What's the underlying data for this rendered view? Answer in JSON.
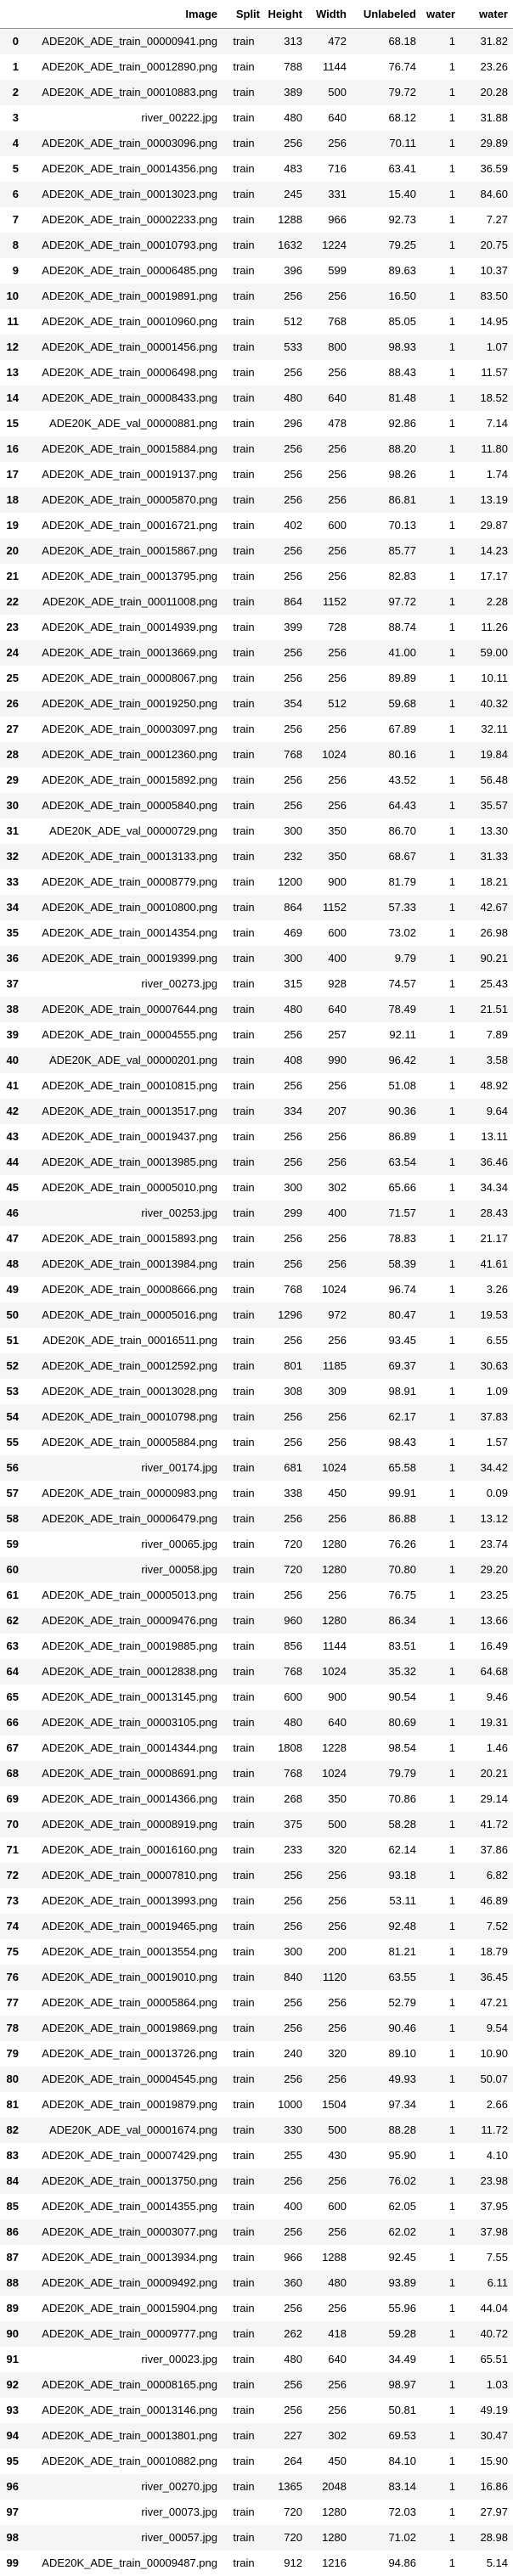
{
  "columns": [
    "",
    "Image",
    "Split",
    "Height",
    "Width",
    "Unlabeled",
    "water",
    "water"
  ],
  "rows": [
    [
      "0",
      "ADE20K_ADE_train_00000941.png",
      "train",
      "313",
      "472",
      "68.18",
      "1",
      "31.82"
    ],
    [
      "1",
      "ADE20K_ADE_train_00012890.png",
      "train",
      "788",
      "1144",
      "76.74",
      "1",
      "23.26"
    ],
    [
      "2",
      "ADE20K_ADE_train_00010883.png",
      "train",
      "389",
      "500",
      "79.72",
      "1",
      "20.28"
    ],
    [
      "3",
      "river_00222.jpg",
      "train",
      "480",
      "640",
      "68.12",
      "1",
      "31.88"
    ],
    [
      "4",
      "ADE20K_ADE_train_00003096.png",
      "train",
      "256",
      "256",
      "70.11",
      "1",
      "29.89"
    ],
    [
      "5",
      "ADE20K_ADE_train_00014356.png",
      "train",
      "483",
      "716",
      "63.41",
      "1",
      "36.59"
    ],
    [
      "6",
      "ADE20K_ADE_train_00013023.png",
      "train",
      "245",
      "331",
      "15.40",
      "1",
      "84.60"
    ],
    [
      "7",
      "ADE20K_ADE_train_00002233.png",
      "train",
      "1288",
      "966",
      "92.73",
      "1",
      "7.27"
    ],
    [
      "8",
      "ADE20K_ADE_train_00010793.png",
      "train",
      "1632",
      "1224",
      "79.25",
      "1",
      "20.75"
    ],
    [
      "9",
      "ADE20K_ADE_train_00006485.png",
      "train",
      "396",
      "599",
      "89.63",
      "1",
      "10.37"
    ],
    [
      "10",
      "ADE20K_ADE_train_00019891.png",
      "train",
      "256",
      "256",
      "16.50",
      "1",
      "83.50"
    ],
    [
      "11",
      "ADE20K_ADE_train_00010960.png",
      "train",
      "512",
      "768",
      "85.05",
      "1",
      "14.95"
    ],
    [
      "12",
      "ADE20K_ADE_train_00001456.png",
      "train",
      "533",
      "800",
      "98.93",
      "1",
      "1.07"
    ],
    [
      "13",
      "ADE20K_ADE_train_00006498.png",
      "train",
      "256",
      "256",
      "88.43",
      "1",
      "11.57"
    ],
    [
      "14",
      "ADE20K_ADE_train_00008433.png",
      "train",
      "480",
      "640",
      "81.48",
      "1",
      "18.52"
    ],
    [
      "15",
      "ADE20K_ADE_val_00000881.png",
      "train",
      "296",
      "478",
      "92.86",
      "1",
      "7.14"
    ],
    [
      "16",
      "ADE20K_ADE_train_00015884.png",
      "train",
      "256",
      "256",
      "88.20",
      "1",
      "11.80"
    ],
    [
      "17",
      "ADE20K_ADE_train_00019137.png",
      "train",
      "256",
      "256",
      "98.26",
      "1",
      "1.74"
    ],
    [
      "18",
      "ADE20K_ADE_train_00005870.png",
      "train",
      "256",
      "256",
      "86.81",
      "1",
      "13.19"
    ],
    [
      "19",
      "ADE20K_ADE_train_00016721.png",
      "train",
      "402",
      "600",
      "70.13",
      "1",
      "29.87"
    ],
    [
      "20",
      "ADE20K_ADE_train_00015867.png",
      "train",
      "256",
      "256",
      "85.77",
      "1",
      "14.23"
    ],
    [
      "21",
      "ADE20K_ADE_train_00013795.png",
      "train",
      "256",
      "256",
      "82.83",
      "1",
      "17.17"
    ],
    [
      "22",
      "ADE20K_ADE_train_00011008.png",
      "train",
      "864",
      "1152",
      "97.72",
      "1",
      "2.28"
    ],
    [
      "23",
      "ADE20K_ADE_train_00014939.png",
      "train",
      "399",
      "728",
      "88.74",
      "1",
      "11.26"
    ],
    [
      "24",
      "ADE20K_ADE_train_00013669.png",
      "train",
      "256",
      "256",
      "41.00",
      "1",
      "59.00"
    ],
    [
      "25",
      "ADE20K_ADE_train_00008067.png",
      "train",
      "256",
      "256",
      "89.89",
      "1",
      "10.11"
    ],
    [
      "26",
      "ADE20K_ADE_train_00019250.png",
      "train",
      "354",
      "512",
      "59.68",
      "1",
      "40.32"
    ],
    [
      "27",
      "ADE20K_ADE_train_00003097.png",
      "train",
      "256",
      "256",
      "67.89",
      "1",
      "32.11"
    ],
    [
      "28",
      "ADE20K_ADE_train_00012360.png",
      "train",
      "768",
      "1024",
      "80.16",
      "1",
      "19.84"
    ],
    [
      "29",
      "ADE20K_ADE_train_00015892.png",
      "train",
      "256",
      "256",
      "43.52",
      "1",
      "56.48"
    ],
    [
      "30",
      "ADE20K_ADE_train_00005840.png",
      "train",
      "256",
      "256",
      "64.43",
      "1",
      "35.57"
    ],
    [
      "31",
      "ADE20K_ADE_val_00000729.png",
      "train",
      "300",
      "350",
      "86.70",
      "1",
      "13.30"
    ],
    [
      "32",
      "ADE20K_ADE_train_00013133.png",
      "train",
      "232",
      "350",
      "68.67",
      "1",
      "31.33"
    ],
    [
      "33",
      "ADE20K_ADE_train_00008779.png",
      "train",
      "1200",
      "900",
      "81.79",
      "1",
      "18.21"
    ],
    [
      "34",
      "ADE20K_ADE_train_00010800.png",
      "train",
      "864",
      "1152",
      "57.33",
      "1",
      "42.67"
    ],
    [
      "35",
      "ADE20K_ADE_train_00014354.png",
      "train",
      "469",
      "600",
      "73.02",
      "1",
      "26.98"
    ],
    [
      "36",
      "ADE20K_ADE_train_00019399.png",
      "train",
      "300",
      "400",
      "9.79",
      "1",
      "90.21"
    ],
    [
      "37",
      "river_00273.jpg",
      "train",
      "315",
      "928",
      "74.57",
      "1",
      "25.43"
    ],
    [
      "38",
      "ADE20K_ADE_train_00007644.png",
      "train",
      "480",
      "640",
      "78.49",
      "1",
      "21.51"
    ],
    [
      "39",
      "ADE20K_ADE_train_00004555.png",
      "train",
      "256",
      "257",
      "92.11",
      "1",
      "7.89"
    ],
    [
      "40",
      "ADE20K_ADE_val_00000201.png",
      "train",
      "408",
      "990",
      "96.42",
      "1",
      "3.58"
    ],
    [
      "41",
      "ADE20K_ADE_train_00010815.png",
      "train",
      "256",
      "256",
      "51.08",
      "1",
      "48.92"
    ],
    [
      "42",
      "ADE20K_ADE_train_00013517.png",
      "train",
      "334",
      "207",
      "90.36",
      "1",
      "9.64"
    ],
    [
      "43",
      "ADE20K_ADE_train_00019437.png",
      "train",
      "256",
      "256",
      "86.89",
      "1",
      "13.11"
    ],
    [
      "44",
      "ADE20K_ADE_train_00013985.png",
      "train",
      "256",
      "256",
      "63.54",
      "1",
      "36.46"
    ],
    [
      "45",
      "ADE20K_ADE_train_00005010.png",
      "train",
      "300",
      "302",
      "65.66",
      "1",
      "34.34"
    ],
    [
      "46",
      "river_00253.jpg",
      "train",
      "299",
      "400",
      "71.57",
      "1",
      "28.43"
    ],
    [
      "47",
      "ADE20K_ADE_train_00015893.png",
      "train",
      "256",
      "256",
      "78.83",
      "1",
      "21.17"
    ],
    [
      "48",
      "ADE20K_ADE_train_00013984.png",
      "train",
      "256",
      "256",
      "58.39",
      "1",
      "41.61"
    ],
    [
      "49",
      "ADE20K_ADE_train_00008666.png",
      "train",
      "768",
      "1024",
      "96.74",
      "1",
      "3.26"
    ],
    [
      "50",
      "ADE20K_ADE_train_00005016.png",
      "train",
      "1296",
      "972",
      "80.47",
      "1",
      "19.53"
    ],
    [
      "51",
      "ADE20K_ADE_train_00016511.png",
      "train",
      "256",
      "256",
      "93.45",
      "1",
      "6.55"
    ],
    [
      "52",
      "ADE20K_ADE_train_00012592.png",
      "train",
      "801",
      "1185",
      "69.37",
      "1",
      "30.63"
    ],
    [
      "53",
      "ADE20K_ADE_train_00013028.png",
      "train",
      "308",
      "309",
      "98.91",
      "1",
      "1.09"
    ],
    [
      "54",
      "ADE20K_ADE_train_00010798.png",
      "train",
      "256",
      "256",
      "62.17",
      "1",
      "37.83"
    ],
    [
      "55",
      "ADE20K_ADE_train_00005884.png",
      "train",
      "256",
      "256",
      "98.43",
      "1",
      "1.57"
    ],
    [
      "56",
      "river_00174.jpg",
      "train",
      "681",
      "1024",
      "65.58",
      "1",
      "34.42"
    ],
    [
      "57",
      "ADE20K_ADE_train_00000983.png",
      "train",
      "338",
      "450",
      "99.91",
      "1",
      "0.09"
    ],
    [
      "58",
      "ADE20K_ADE_train_00006479.png",
      "train",
      "256",
      "256",
      "86.88",
      "1",
      "13.12"
    ],
    [
      "59",
      "river_00065.jpg",
      "train",
      "720",
      "1280",
      "76.26",
      "1",
      "23.74"
    ],
    [
      "60",
      "river_00058.jpg",
      "train",
      "720",
      "1280",
      "70.80",
      "1",
      "29.20"
    ],
    [
      "61",
      "ADE20K_ADE_train_00005013.png",
      "train",
      "256",
      "256",
      "76.75",
      "1",
      "23.25"
    ],
    [
      "62",
      "ADE20K_ADE_train_00009476.png",
      "train",
      "960",
      "1280",
      "86.34",
      "1",
      "13.66"
    ],
    [
      "63",
      "ADE20K_ADE_train_00019885.png",
      "train",
      "856",
      "1144",
      "83.51",
      "1",
      "16.49"
    ],
    [
      "64",
      "ADE20K_ADE_train_00012838.png",
      "train",
      "768",
      "1024",
      "35.32",
      "1",
      "64.68"
    ],
    [
      "65",
      "ADE20K_ADE_train_00013145.png",
      "train",
      "600",
      "900",
      "90.54",
      "1",
      "9.46"
    ],
    [
      "66",
      "ADE20K_ADE_train_00003105.png",
      "train",
      "480",
      "640",
      "80.69",
      "1",
      "19.31"
    ],
    [
      "67",
      "ADE20K_ADE_train_00014344.png",
      "train",
      "1808",
      "1228",
      "98.54",
      "1",
      "1.46"
    ],
    [
      "68",
      "ADE20K_ADE_train_00008691.png",
      "train",
      "768",
      "1024",
      "79.79",
      "1",
      "20.21"
    ],
    [
      "69",
      "ADE20K_ADE_train_00014366.png",
      "train",
      "268",
      "350",
      "70.86",
      "1",
      "29.14"
    ],
    [
      "70",
      "ADE20K_ADE_train_00008919.png",
      "train",
      "375",
      "500",
      "58.28",
      "1",
      "41.72"
    ],
    [
      "71",
      "ADE20K_ADE_train_00016160.png",
      "train",
      "233",
      "320",
      "62.14",
      "1",
      "37.86"
    ],
    [
      "72",
      "ADE20K_ADE_train_00007810.png",
      "train",
      "256",
      "256",
      "93.18",
      "1",
      "6.82"
    ],
    [
      "73",
      "ADE20K_ADE_train_00013993.png",
      "train",
      "256",
      "256",
      "53.11",
      "1",
      "46.89"
    ],
    [
      "74",
      "ADE20K_ADE_train_00019465.png",
      "train",
      "256",
      "256",
      "92.48",
      "1",
      "7.52"
    ],
    [
      "75",
      "ADE20K_ADE_train_00013554.png",
      "train",
      "300",
      "200",
      "81.21",
      "1",
      "18.79"
    ],
    [
      "76",
      "ADE20K_ADE_train_00019010.png",
      "train",
      "840",
      "1120",
      "63.55",
      "1",
      "36.45"
    ],
    [
      "77",
      "ADE20K_ADE_train_00005864.png",
      "train",
      "256",
      "256",
      "52.79",
      "1",
      "47.21"
    ],
    [
      "78",
      "ADE20K_ADE_train_00019869.png",
      "train",
      "256",
      "256",
      "90.46",
      "1",
      "9.54"
    ],
    [
      "79",
      "ADE20K_ADE_train_00013726.png",
      "train",
      "240",
      "320",
      "89.10",
      "1",
      "10.90"
    ],
    [
      "80",
      "ADE20K_ADE_train_00004545.png",
      "train",
      "256",
      "256",
      "49.93",
      "1",
      "50.07"
    ],
    [
      "81",
      "ADE20K_ADE_train_00019879.png",
      "train",
      "1000",
      "1504",
      "97.34",
      "1",
      "2.66"
    ],
    [
      "82",
      "ADE20K_ADE_val_00001674.png",
      "train",
      "330",
      "500",
      "88.28",
      "1",
      "11.72"
    ],
    [
      "83",
      "ADE20K_ADE_train_00007429.png",
      "train",
      "255",
      "430",
      "95.90",
      "1",
      "4.10"
    ],
    [
      "84",
      "ADE20K_ADE_train_00013750.png",
      "train",
      "256",
      "256",
      "76.02",
      "1",
      "23.98"
    ],
    [
      "85",
      "ADE20K_ADE_train_00014355.png",
      "train",
      "400",
      "600",
      "62.05",
      "1",
      "37.95"
    ],
    [
      "86",
      "ADE20K_ADE_train_00003077.png",
      "train",
      "256",
      "256",
      "62.02",
      "1",
      "37.98"
    ],
    [
      "87",
      "ADE20K_ADE_train_00013934.png",
      "train",
      "966",
      "1288",
      "92.45",
      "1",
      "7.55"
    ],
    [
      "88",
      "ADE20K_ADE_train_00009492.png",
      "train",
      "360",
      "480",
      "93.89",
      "1",
      "6.11"
    ],
    [
      "89",
      "ADE20K_ADE_train_00015904.png",
      "train",
      "256",
      "256",
      "55.96",
      "1",
      "44.04"
    ],
    [
      "90",
      "ADE20K_ADE_train_00009777.png",
      "train",
      "262",
      "418",
      "59.28",
      "1",
      "40.72"
    ],
    [
      "91",
      "river_00023.jpg",
      "train",
      "480",
      "640",
      "34.49",
      "1",
      "65.51"
    ],
    [
      "92",
      "ADE20K_ADE_train_00008165.png",
      "train",
      "256",
      "256",
      "98.97",
      "1",
      "1.03"
    ],
    [
      "93",
      "ADE20K_ADE_train_00013146.png",
      "train",
      "256",
      "256",
      "50.81",
      "1",
      "49.19"
    ],
    [
      "94",
      "ADE20K_ADE_train_00013801.png",
      "train",
      "227",
      "302",
      "69.53",
      "1",
      "30.47"
    ],
    [
      "95",
      "ADE20K_ADE_train_00010882.png",
      "train",
      "264",
      "450",
      "84.10",
      "1",
      "15.90"
    ],
    [
      "96",
      "river_00270.jpg",
      "train",
      "1365",
      "2048",
      "83.14",
      "1",
      "16.86"
    ],
    [
      "97",
      "river_00073.jpg",
      "train",
      "720",
      "1280",
      "72.03",
      "1",
      "27.97"
    ],
    [
      "98",
      "river_00057.jpg",
      "train",
      "720",
      "1280",
      "71.02",
      "1",
      "28.98"
    ],
    [
      "99",
      "ADE20K_ADE_train_00009487.png",
      "train",
      "912",
      "1216",
      "94.86",
      "1",
      "5.14"
    ]
  ]
}
